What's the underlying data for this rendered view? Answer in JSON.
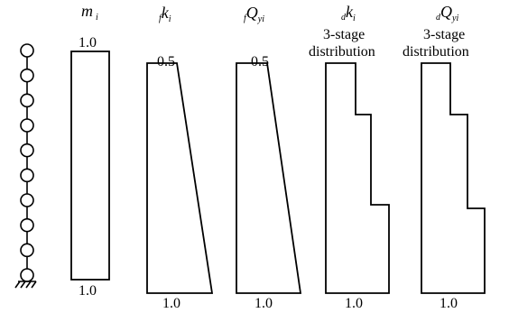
{
  "headers": {
    "m": {
      "main": "m",
      "sub": "i"
    },
    "fk": {
      "pre": "f",
      "main": "k",
      "sub": "i"
    },
    "fq": {
      "pre": "f",
      "main": "Q",
      "sub": "yi"
    },
    "dk": {
      "pre": "d",
      "main": "k",
      "sub": "i",
      "line2": "3-stage",
      "line3": "distribution"
    },
    "dq": {
      "pre": "d",
      "main": "Q",
      "sub": "yi",
      "line2": "3-stage",
      "line3": "distribution"
    }
  },
  "labels": {
    "m_top": "1.0",
    "m_bottom": "1.0",
    "fk_top": "0.5",
    "fk_bottom": "1.0",
    "fq_top": "0.5",
    "fq_bottom": "1.0",
    "dk_bottom": "1.0",
    "dq_bottom": "1.0"
  },
  "model": {
    "node_count": 10,
    "support": "fixed"
  }
}
